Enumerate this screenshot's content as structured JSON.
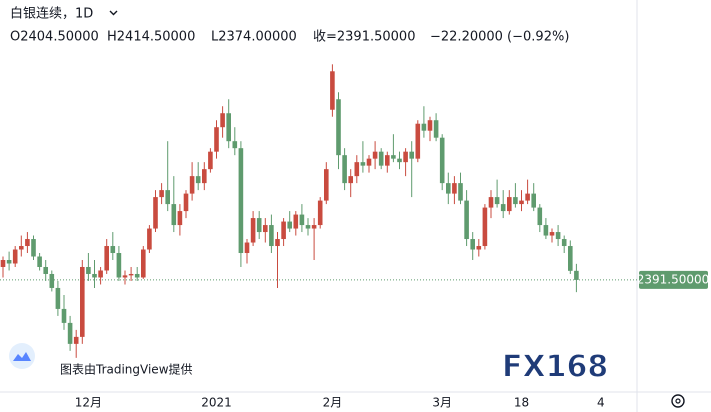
{
  "chart_data": {
    "type": "candlestick",
    "symbol": "白银连续，1D",
    "ohlc_header": [
      "O2404.50000",
      "H2414.50000",
      "L2374.00000",
      "收=2391.50000",
      "−22.20000 (−0.92%)"
    ],
    "categories": [
      null,
      null,
      null,
      null,
      null,
      null,
      null,
      null,
      null,
      null,
      null,
      null,
      null,
      null,
      "12月",
      null,
      null,
      null,
      null,
      null,
      null,
      null,
      null,
      null,
      null,
      null,
      null,
      null,
      null,
      null,
      null,
      null,
      null,
      null,
      null,
      "2021",
      null,
      null,
      null,
      null,
      null,
      null,
      null,
      null,
      null,
      null,
      null,
      null,
      null,
      null,
      null,
      null,
      null,
      null,
      "2月",
      null,
      null,
      null,
      null,
      null,
      null,
      null,
      null,
      null,
      null,
      null,
      null,
      null,
      null,
      null,
      null,
      null,
      "3月",
      null,
      null,
      null,
      null,
      null,
      null,
      null,
      null,
      null,
      null,
      null,
      null,
      "18",
      null,
      null,
      null,
      null,
      null,
      null,
      null,
      null,
      null,
      null,
      null,
      null,
      "4"
    ],
    "open": [
      2410,
      2420,
      2415,
      2435,
      2440,
      2450,
      2425,
      2410,
      2400,
      2380,
      2350,
      2330,
      2300,
      2310,
      2410,
      2400,
      2395,
      2405,
      2440,
      2430,
      2395,
      2398,
      2400,
      2395,
      2435,
      2465,
      2510,
      2520,
      2500,
      2470,
      2490,
      2515,
      2540,
      2530,
      2550,
      2575,
      2610,
      2630,
      2590,
      2580,
      2430,
      2445,
      2480,
      2460,
      2470,
      2440,
      2450,
      2475,
      2465,
      2485,
      2470,
      2465,
      2470,
      2505,
      2635,
      2650,
      2570,
      2530,
      2540,
      2560,
      2555,
      2565,
      2575,
      2555,
      2570,
      2565,
      2560,
      2575,
      2565,
      2615,
      2605,
      2620,
      2595,
      2530,
      2515,
      2530,
      2505,
      2450,
      2435,
      2440,
      2495,
      2510,
      2500,
      2490,
      2510,
      2500,
      2505,
      2515,
      2495,
      2470,
      2455,
      2460,
      2450,
      2440,
      2404.5,
      null,
      null,
      null,
      null
    ],
    "high": [
      2425,
      2432,
      2440,
      2455,
      2460,
      2455,
      2430,
      2420,
      2405,
      2390,
      2370,
      2340,
      2320,
      2420,
      2430,
      2420,
      2410,
      2450,
      2460,
      2440,
      2405,
      2410,
      2410,
      2440,
      2470,
      2520,
      2530,
      2590,
      2540,
      2500,
      2520,
      2560,
      2560,
      2560,
      2580,
      2620,
      2640,
      2650,
      2610,
      2590,
      2450,
      2490,
      2490,
      2480,
      2485,
      2460,
      2480,
      2490,
      2490,
      2500,
      2480,
      2480,
      2510,
      2560,
      2700,
      2660,
      2580,
      2550,
      2570,
      2590,
      2570,
      2590,
      2580,
      2575,
      2600,
      2575,
      2580,
      2590,
      2620,
      2640,
      2625,
      2630,
      2600,
      2545,
      2540,
      2545,
      2520,
      2460,
      2450,
      2500,
      2520,
      2535,
      2520,
      2520,
      2530,
      2520,
      2535,
      2530,
      2500,
      2480,
      2465,
      2470,
      2455,
      2448,
      2414.5,
      null,
      null,
      null,
      null
    ],
    "low": [
      2395,
      2405,
      2410,
      2425,
      2430,
      2420,
      2405,
      2390,
      2375,
      2340,
      2320,
      2290,
      2280,
      2300,
      2390,
      2380,
      2385,
      2400,
      2420,
      2390,
      2385,
      2390,
      2390,
      2393,
      2430,
      2460,
      2500,
      2490,
      2460,
      2455,
      2480,
      2505,
      2520,
      2520,
      2545,
      2565,
      2595,
      2580,
      2570,
      2410,
      2415,
      2440,
      2450,
      2445,
      2430,
      2380,
      2440,
      2460,
      2455,
      2460,
      2455,
      2420,
      2465,
      2500,
      2625,
      2550,
      2520,
      2510,
      2530,
      2545,
      2545,
      2550,
      2550,
      2545,
      2560,
      2550,
      2540,
      2510,
      2560,
      2595,
      2590,
      2590,
      2520,
      2500,
      2500,
      2500,
      2440,
      2420,
      2425,
      2435,
      2480,
      2495,
      2480,
      2485,
      2495,
      2490,
      2500,
      2490,
      2460,
      2450,
      2445,
      2440,
      2430,
      2400,
      2374,
      null,
      null,
      null,
      null
    ],
    "close": [
      2420,
      2415,
      2435,
      2440,
      2450,
      2425,
      2410,
      2400,
      2380,
      2350,
      2330,
      2300,
      2310,
      2410,
      2400,
      2395,
      2405,
      2440,
      2430,
      2395,
      2398,
      2400,
      2395,
      2435,
      2465,
      2510,
      2520,
      2500,
      2470,
      2490,
      2515,
      2540,
      2530,
      2550,
      2575,
      2610,
      2630,
      2590,
      2580,
      2430,
      2445,
      2480,
      2460,
      2470,
      2440,
      2450,
      2475,
      2465,
      2485,
      2470,
      2465,
      2470,
      2505,
      2550,
      2690,
      2570,
      2530,
      2540,
      2560,
      2555,
      2565,
      2575,
      2555,
      2570,
      2565,
      2560,
      2575,
      2565,
      2615,
      2605,
      2620,
      2595,
      2530,
      2515,
      2530,
      2505,
      2450,
      2435,
      2440,
      2495,
      2510,
      2500,
      2490,
      2510,
      2500,
      2505,
      2515,
      2495,
      2470,
      2455,
      2460,
      2450,
      2440,
      2404.5,
      2391.5,
      null,
      null,
      null,
      null
    ],
    "up_color": "#c94b3f",
    "down_color": "#5f9b6e",
    "ylim": [
      2234,
      2792
    ],
    "last_price": {
      "value": 2391.5,
      "label": "2391.50000"
    },
    "attribution": "图表由TradingView提供",
    "watermark": "FX168"
  }
}
